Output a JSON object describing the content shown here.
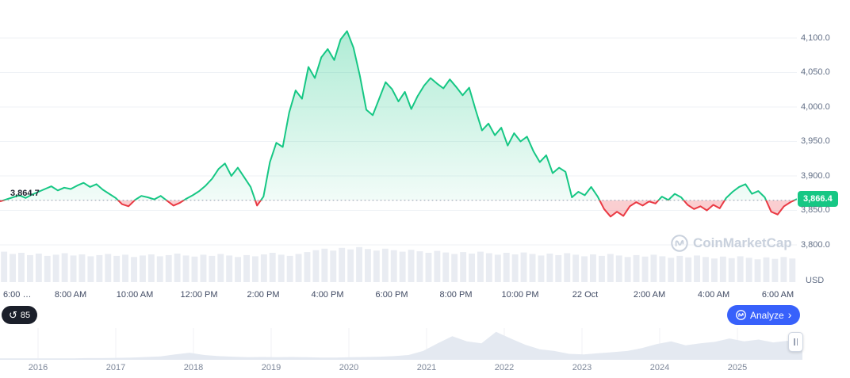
{
  "ui": {
    "open_price_label": "3,864.7",
    "current_price_badge": "3,866.4",
    "currency": "USD",
    "watermark": "CoinMarketCap",
    "history_count": "85",
    "analyze": {
      "label": "Analyze",
      "chevron": "›"
    }
  },
  "chart_data": [
    {
      "type": "area",
      "name": "price-24h",
      "unit": "USD",
      "open_price": 3864.7,
      "current_price": 3866.4,
      "up_color": "#16c784",
      "down_color": "#ea3943",
      "grid": "horizontal",
      "legend": "none",
      "ylim": [
        3790,
        4115
      ],
      "y_axis_ticks": [
        4100,
        4050,
        4000,
        3950,
        3900,
        3850,
        3800
      ],
      "y_axis_labels": [
        "4,100.0",
        "4,050.0",
        "4,000.0",
        "3,950.0",
        "3,900.0",
        "3,850.0",
        "3,800.0"
      ],
      "x_ticks": [
        {
          "label": "6:00 …",
          "hour": 0
        },
        {
          "label": "8:00 AM",
          "hour": 2
        },
        {
          "label": "10:00 AM",
          "hour": 4
        },
        {
          "label": "12:00 PM",
          "hour": 6
        },
        {
          "label": "2:00 PM",
          "hour": 8
        },
        {
          "label": "4:00 PM",
          "hour": 10
        },
        {
          "label": "6:00 PM",
          "hour": 12
        },
        {
          "label": "8:00 PM",
          "hour": 14
        },
        {
          "label": "10:00 PM",
          "hour": 16
        },
        {
          "label": "22 Oct",
          "hour": 18
        },
        {
          "label": "2:00 AM",
          "hour": 20
        },
        {
          "label": "4:00 AM",
          "hour": 22
        },
        {
          "label": "6:00 AM",
          "hour": 24
        }
      ],
      "x_start_hour": -0.2,
      "x_step_hour": 0.2,
      "prices": [
        3863,
        3866,
        3869,
        3872,
        3868,
        3873,
        3877,
        3881,
        3885,
        3879,
        3883,
        3881,
        3886,
        3890,
        3884,
        3888,
        3880,
        3874,
        3868,
        3859,
        3856,
        3865,
        3871,
        3869,
        3866,
        3871,
        3864,
        3857,
        3861,
        3867,
        3872,
        3878,
        3886,
        3896,
        3910,
        3918,
        3900,
        3912,
        3898,
        3884,
        3857,
        3870,
        3920,
        3948,
        3942,
        3992,
        4024,
        4012,
        4058,
        4042,
        4072,
        4084,
        4068,
        4098,
        4110,
        4086,
        4045,
        3996,
        3988,
        4012,
        4036,
        4026,
        4008,
        4022,
        3997,
        4016,
        4031,
        4042,
        4034,
        4027,
        4040,
        4029,
        4017,
        4028,
        3996,
        3966,
        3976,
        3959,
        3970,
        3944,
        3962,
        3950,
        3957,
        3936,
        3920,
        3930,
        3904,
        3912,
        3906,
        3869,
        3877,
        3872,
        3884,
        3870,
        3852,
        3841,
        3848,
        3842,
        3856,
        3862,
        3857,
        3863,
        3860,
        3870,
        3865,
        3874,
        3869,
        3858,
        3852,
        3856,
        3850,
        3858,
        3853,
        3868,
        3877,
        3884,
        3888,
        3874,
        3878,
        3869,
        3848,
        3844,
        3856,
        3862,
        3866.4
      ],
      "volume_norm": [
        0.8,
        0.74,
        0.77,
        0.71,
        0.75,
        0.69,
        0.72,
        0.76,
        0.7,
        0.73,
        0.68,
        0.71,
        0.74,
        0.69,
        0.72,
        0.66,
        0.7,
        0.73,
        0.68,
        0.71,
        0.75,
        0.7,
        0.67,
        0.72,
        0.69,
        0.74,
        0.7,
        0.66,
        0.71,
        0.68,
        0.73,
        0.77,
        0.72,
        0.69,
        0.74,
        0.79,
        0.84,
        0.88,
        0.83,
        0.9,
        0.86,
        0.92,
        0.87,
        0.83,
        0.88,
        0.84,
        0.8,
        0.85,
        0.81,
        0.77,
        0.82,
        0.78,
        0.74,
        0.79,
        0.75,
        0.8,
        0.76,
        0.72,
        0.77,
        0.73,
        0.78,
        0.74,
        0.7,
        0.75,
        0.71,
        0.76,
        0.72,
        0.68,
        0.73,
        0.69,
        0.74,
        0.7,
        0.66,
        0.71,
        0.67,
        0.72,
        0.68,
        0.64,
        0.69,
        0.65,
        0.7,
        0.66,
        0.62,
        0.67,
        0.63,
        0.68,
        0.64,
        0.6,
        0.65,
        0.61,
        0.66,
        0.62
      ]
    },
    {
      "type": "area",
      "name": "history-timeline",
      "years": [
        "2016",
        "2017",
        "2018",
        "2019",
        "2020",
        "2021",
        "2022",
        "2023",
        "2024",
        "2025"
      ],
      "values_norm": [
        0.02,
        0.02,
        0.02,
        0.02,
        0.02,
        0.02,
        0.03,
        0.03,
        0.04,
        0.05,
        0.07,
        0.09,
        0.16,
        0.22,
        0.14,
        0.1,
        0.08,
        0.06,
        0.07,
        0.06,
        0.07,
        0.06,
        0.05,
        0.05,
        0.06,
        0.07,
        0.08,
        0.1,
        0.14,
        0.28,
        0.55,
        0.8,
        0.62,
        0.55,
        0.95,
        0.72,
        0.5,
        0.34,
        0.28,
        0.18,
        0.16,
        0.2,
        0.24,
        0.28,
        0.38,
        0.52,
        0.62,
        0.48,
        0.55,
        0.6,
        0.72,
        0.62,
        0.68,
        0.58,
        0.64,
        0.6
      ],
      "fill_color": "#e4e9f1"
    }
  ]
}
